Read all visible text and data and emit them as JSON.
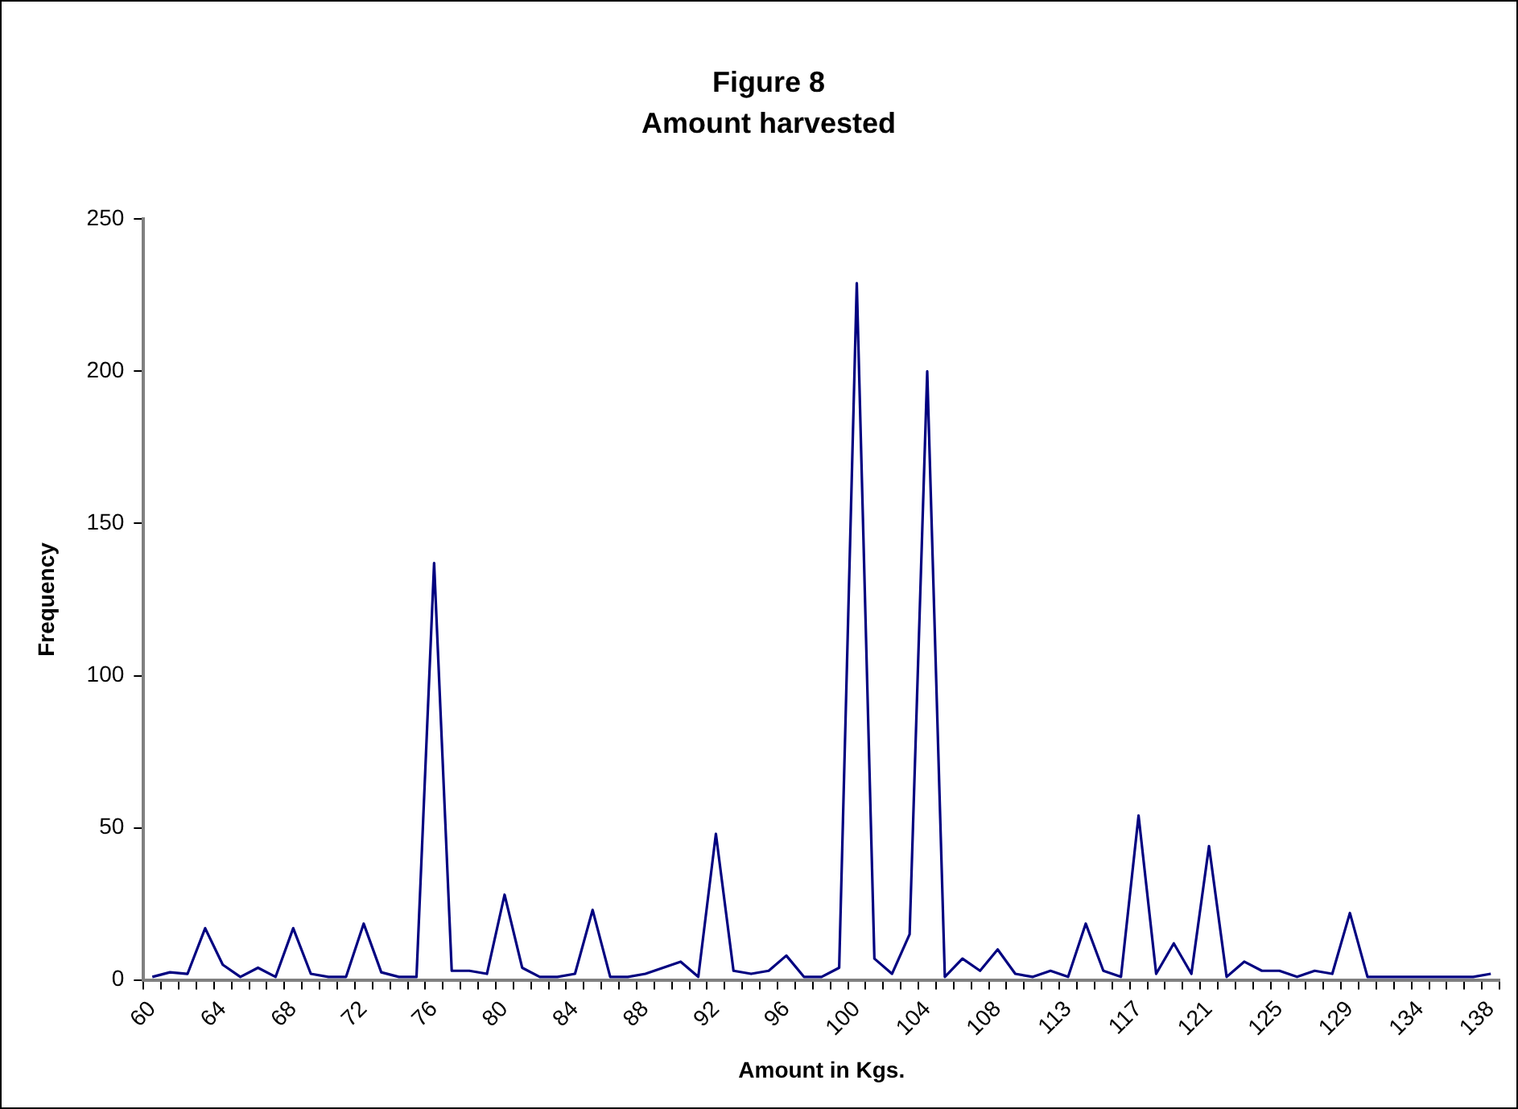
{
  "chart_data": {
    "type": "line",
    "title": "Figure 8",
    "subtitle": "Amount harvested",
    "xlabel": "Amount in Kgs.",
    "ylabel": "Frequency",
    "categories": [
      "60",
      null,
      null,
      null,
      "64",
      null,
      null,
      null,
      "68",
      null,
      null,
      null,
      "72",
      null,
      null,
      null,
      "76",
      null,
      null,
      null,
      "80",
      null,
      null,
      null,
      "84",
      null,
      null,
      null,
      "88",
      null,
      null,
      null,
      "92",
      null,
      null,
      null,
      "96",
      null,
      null,
      null,
      "100",
      null,
      null,
      null,
      "104",
      null,
      null,
      null,
      "108",
      null,
      null,
      null,
      "113",
      null,
      null,
      null,
      "117",
      null,
      null,
      null,
      "121",
      null,
      null,
      null,
      "125",
      null,
      null,
      null,
      "129",
      null,
      null,
      null,
      "134",
      null,
      null,
      null,
      "138"
    ],
    "series": [
      {
        "color": "#000080",
        "values": [
          1,
          2.5,
          2,
          17,
          5,
          1,
          4,
          1,
          17,
          2,
          1,
          1,
          18.5,
          2.5,
          1,
          1,
          137,
          3,
          3,
          2,
          28,
          4,
          1,
          1,
          2,
          23,
          1,
          1,
          2,
          4,
          6,
          1,
          48,
          3,
          2,
          3,
          8,
          1,
          1,
          4,
          229,
          7,
          2,
          15,
          200,
          1,
          7,
          3,
          10,
          2,
          1,
          3,
          1,
          18.5,
          3,
          1,
          54,
          2,
          12,
          2,
          44,
          1,
          6,
          3,
          3,
          1,
          3,
          2,
          22,
          1,
          1,
          1,
          1,
          1,
          1,
          1,
          2
        ]
      }
    ],
    "ylim": [
      0,
      250
    ],
    "yticks": [
      0,
      50,
      100,
      150,
      200,
      250
    ],
    "marker": "none",
    "line_style": "solid"
  }
}
